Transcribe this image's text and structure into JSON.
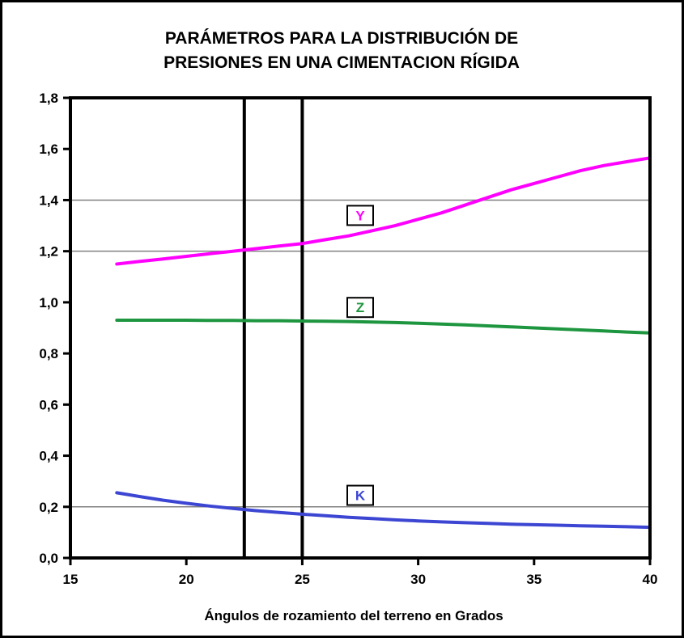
{
  "chart_data": {
    "type": "line",
    "title": [
      "PARÁMETROS PARA LA DISTRIBUCIÓN DE",
      "PRESIONES EN UNA CIMENTACION RÍGIDA"
    ],
    "xlabel": "Ángulos de rozamiento del terreno en Grados",
    "ylabel": "",
    "xlim": [
      15,
      40
    ],
    "ylim": [
      0,
      1.8
    ],
    "x_ticks": [
      15,
      20,
      25,
      30,
      35,
      40
    ],
    "x_tick_labels": [
      "15",
      "20",
      "25",
      "30",
      "35",
      "40"
    ],
    "y_ticks": [
      0,
      0.2,
      0.4,
      0.6,
      0.8,
      1.0,
      1.2,
      1.4,
      1.6,
      1.8
    ],
    "y_tick_labels": [
      "0,0",
      "0,2",
      "0,4",
      "0,6",
      "0,8",
      "1,0",
      "1,2",
      "1,4",
      "1,6",
      "1,8"
    ],
    "horizontal_gridlines": [
      0.2,
      1.2,
      1.4
    ],
    "vertical_lines": [
      22.5,
      25
    ],
    "series": [
      {
        "name": "Y",
        "color": "#ff00ff",
        "label_at": [
          27.5,
          1.34
        ],
        "points": [
          [
            17,
            1.15
          ],
          [
            18,
            1.16
          ],
          [
            19,
            1.17
          ],
          [
            20,
            1.18
          ],
          [
            21,
            1.19
          ],
          [
            22,
            1.2
          ],
          [
            23,
            1.21
          ],
          [
            24,
            1.22
          ],
          [
            25,
            1.23
          ],
          [
            26,
            1.245
          ],
          [
            27,
            1.26
          ],
          [
            28,
            1.28
          ],
          [
            29,
            1.3
          ],
          [
            30,
            1.325
          ],
          [
            31,
            1.35
          ],
          [
            32,
            1.38
          ],
          [
            33,
            1.41
          ],
          [
            34,
            1.44
          ],
          [
            35,
            1.465
          ],
          [
            36,
            1.49
          ],
          [
            37,
            1.515
          ],
          [
            38,
            1.535
          ],
          [
            39,
            1.55
          ],
          [
            40,
            1.565
          ]
        ]
      },
      {
        "name": "Z",
        "color": "#1e9640",
        "label_at": [
          27.5,
          0.98
        ],
        "points": [
          [
            17,
            0.93
          ],
          [
            18,
            0.93
          ],
          [
            19,
            0.93
          ],
          [
            20,
            0.93
          ],
          [
            21,
            0.929
          ],
          [
            22,
            0.929
          ],
          [
            23,
            0.928
          ],
          [
            24,
            0.928
          ],
          [
            25,
            0.927
          ],
          [
            26,
            0.926
          ],
          [
            27,
            0.925
          ],
          [
            28,
            0.923
          ],
          [
            29,
            0.921
          ],
          [
            30,
            0.918
          ],
          [
            31,
            0.915
          ],
          [
            32,
            0.912
          ],
          [
            33,
            0.908
          ],
          [
            34,
            0.904
          ],
          [
            35,
            0.9
          ],
          [
            36,
            0.896
          ],
          [
            37,
            0.892
          ],
          [
            38,
            0.888
          ],
          [
            39,
            0.884
          ],
          [
            40,
            0.88
          ]
        ]
      },
      {
        "name": "K",
        "color": "#3c46d2",
        "label_at": [
          27.5,
          0.245
        ],
        "points": [
          [
            17,
            0.255
          ],
          [
            18,
            0.24
          ],
          [
            19,
            0.226
          ],
          [
            20,
            0.214
          ],
          [
            21,
            0.203
          ],
          [
            22,
            0.194
          ],
          [
            23,
            0.185
          ],
          [
            24,
            0.178
          ],
          [
            25,
            0.171
          ],
          [
            26,
            0.165
          ],
          [
            27,
            0.159
          ],
          [
            28,
            0.154
          ],
          [
            29,
            0.149
          ],
          [
            30,
            0.145
          ],
          [
            31,
            0.141
          ],
          [
            32,
            0.138
          ],
          [
            33,
            0.135
          ],
          [
            34,
            0.132
          ],
          [
            35,
            0.13
          ],
          [
            36,
            0.128
          ],
          [
            37,
            0.126
          ],
          [
            38,
            0.124
          ],
          [
            39,
            0.122
          ],
          [
            40,
            0.12
          ]
        ]
      }
    ],
    "legend": "none",
    "grid": true
  }
}
